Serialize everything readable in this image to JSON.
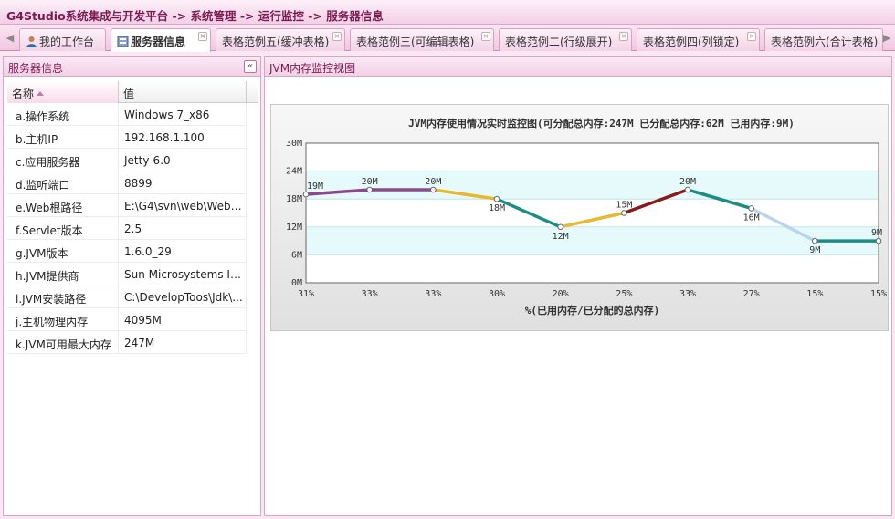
{
  "header": {
    "breadcrumb": "G4Studio系统集成与开发平台 -> 系统管理 -> 运行监控 -> 服务器信息"
  },
  "tabs": [
    {
      "label": "我的工作台",
      "icon": "user-icon",
      "closable": false,
      "active": false
    },
    {
      "label": "服务器信息",
      "icon": "server-icon",
      "closable": true,
      "active": true
    },
    {
      "label": "表格范例五(缓冲表格)",
      "closable": true,
      "active": false
    },
    {
      "label": "表格范例三(可编辑表格)",
      "closable": true,
      "active": false
    },
    {
      "label": "表格范例二(行级展开)",
      "closable": true,
      "active": false
    },
    {
      "label": "表格范例四(列锁定)",
      "closable": true,
      "active": false
    },
    {
      "label": "表格范例六(合计表格)",
      "closable": true,
      "active": false
    }
  ],
  "left_panel": {
    "title": "服务器信息",
    "columns": [
      "名称",
      "值"
    ],
    "rows": [
      {
        "name": "a.操作系统",
        "value": "Windows 7_x86"
      },
      {
        "name": "b.主机IP",
        "value": "192.168.1.100"
      },
      {
        "name": "c.应用服务器",
        "value": "Jetty-6.0"
      },
      {
        "name": "d.监听端口",
        "value": "8899"
      },
      {
        "name": "e.Web根路径",
        "value": "E:\\G4\\svn\\web\\WebR..."
      },
      {
        "name": "f.Servlet版本",
        "value": "2.5"
      },
      {
        "name": "g.JVM版本",
        "value": "1.6.0_29"
      },
      {
        "name": "h.JVM提供商",
        "value": "Sun Microsystems Inc."
      },
      {
        "name": "i.JVM安装路径",
        "value": "C:\\DevelopToos\\Jdk\\..."
      },
      {
        "name": "j.主机物理内存",
        "value": "4095M"
      },
      {
        "name": "k.JVM可用最大内存",
        "value": "247M"
      }
    ]
  },
  "right_panel": {
    "title": "JVM内存监控视图"
  },
  "colors": {
    "accent": "#7a1a52",
    "band": "#e6fafc"
  },
  "chart_data": {
    "type": "line",
    "title": "JVM内存使用情况实时监控图(可分配总内存:247M 已分配总内存:62M 已用内存:9M)",
    "xlabel": "%(已用内存/已分配的总内存)",
    "ylabel": "",
    "categories": [
      "31%",
      "33%",
      "33%",
      "30%",
      "20%",
      "25%",
      "33%",
      "27%",
      "15%",
      "15%"
    ],
    "values": [
      19,
      20,
      20,
      18,
      12,
      15,
      20,
      16,
      9,
      9
    ],
    "point_labels": [
      "19M",
      "20M",
      "20M",
      "18M",
      "12M",
      "15M",
      "20M",
      "16M",
      "9M",
      "9M"
    ],
    "ylim": [
      0,
      30
    ],
    "yticks": [
      "0M",
      "6M",
      "12M",
      "18M",
      "24M",
      "30M"
    ],
    "segment_colors": [
      "#8a4a8c",
      "#8a4a8c",
      "#e8b830",
      "#1d8c84",
      "#e8b830",
      "#8b1a1a",
      "#1d8c84",
      "#b9d4ec",
      "#1d8c84"
    ],
    "grid": true
  }
}
